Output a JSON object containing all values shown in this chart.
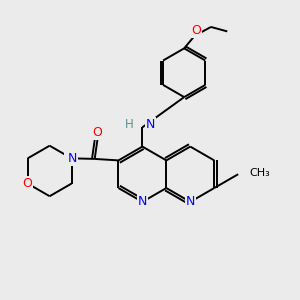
{
  "bg_color": "#ebebeb",
  "atom_colors": {
    "N": "#0000ff",
    "O": "#ff0000",
    "H": "#5a9090"
  },
  "bond_color": "#000000",
  "bond_width": 1.4,
  "figsize": [
    3.0,
    3.0
  ],
  "dpi": 100
}
